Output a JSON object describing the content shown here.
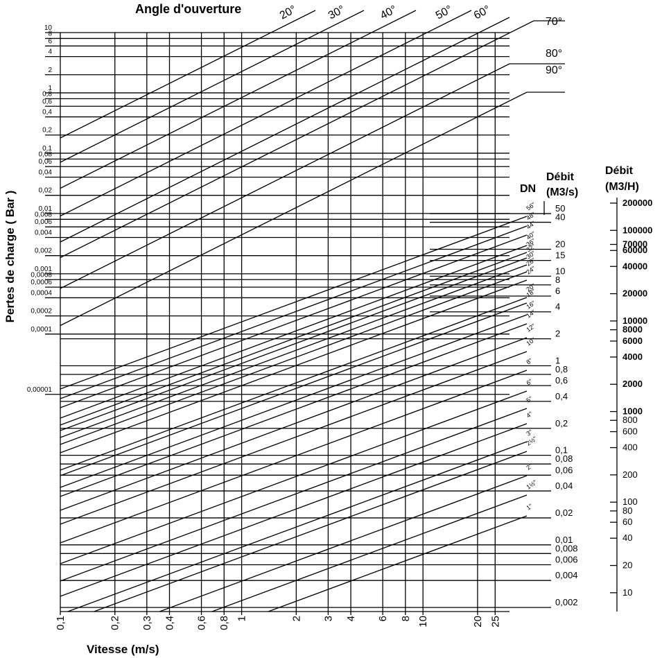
{
  "chart_data": {
    "type": "nomogram",
    "title": "Angle d'ouverture",
    "xlabel": "Vitesse (m/s)",
    "ylabel": "Pertes de charge ( Bar )",
    "log_scale": true,
    "xlim": [
      0.1,
      30
    ],
    "xticks": [
      {
        "value": 0.1,
        "label": "0,1"
      },
      {
        "value": 0.2,
        "label": "0,2"
      },
      {
        "value": 0.3,
        "label": "0,3"
      },
      {
        "value": 0.4,
        "label": "0,4"
      },
      {
        "value": 0.6,
        "label": "0,6"
      },
      {
        "value": 0.8,
        "label": "0,8"
      },
      1,
      2,
      3,
      4,
      6,
      8,
      10,
      20,
      25
    ],
    "ylim": [
      2.5e-09,
      10
    ],
    "yticks": [
      10,
      8,
      6,
      4,
      2,
      1,
      {
        "value": 0.8,
        "label": "0,8"
      },
      {
        "value": 0.6,
        "label": "0,6"
      },
      {
        "value": 0.4,
        "label": "0,4"
      },
      {
        "value": 0.2,
        "label": "0,2"
      },
      {
        "value": 0.1,
        "label": "0,1"
      },
      {
        "value": 0.08,
        "label": "0,08"
      },
      {
        "value": 0.06,
        "label": "0,06"
      },
      {
        "value": 0.04,
        "label": "0,04"
      },
      {
        "value": 0.02,
        "label": "0,02"
      },
      {
        "value": 0.01,
        "label": "0,01"
      },
      {
        "value": 0.008,
        "label": "0,008"
      },
      {
        "value": 0.006,
        "label": "0,006"
      },
      {
        "value": 0.004,
        "label": "0,004"
      },
      {
        "value": 0.002,
        "label": "0,002"
      },
      {
        "value": 0.001,
        "label": "0,001"
      },
      {
        "value": 0.0008,
        "label": "0,0008"
      },
      {
        "value": 0.0006,
        "label": "0,0006"
      },
      {
        "value": 0.0004,
        "label": "0,0004"
      },
      {
        "value": 0.0002,
        "label": "0,0002"
      },
      {
        "value": 0.0001,
        "label": "0,0001"
      },
      {
        "value": 1e-05,
        "label": "0,00001"
      }
    ],
    "angles": [
      "20°",
      "30°",
      "40°",
      "50°",
      "60°",
      "70°",
      "80°",
      "90°"
    ],
    "dn_label": "DN",
    "dn": [
      "56\"",
      "48\"",
      "44\"",
      "40\"",
      "36\"",
      "32\"",
      "30\"",
      "28\"",
      "24\"",
      "20\"",
      "18\"",
      "16\"",
      "14\"",
      "12\"",
      "10\"",
      "8\"",
      "6\"",
      "5\"",
      "4\"",
      "3\"",
      "2½\"",
      "2\"",
      "1½\"",
      "1\""
    ],
    "y2label": [
      "Débit",
      "(M3/s)"
    ],
    "y2lim": [
      0.0018,
      69
    ],
    "y2ticks": [
      50,
      40,
      20,
      15,
      10,
      8,
      6,
      4,
      2,
      1,
      {
        "value": 0.8,
        "label": "0,8"
      },
      {
        "value": 0.6,
        "label": "0,6"
      },
      {
        "value": 0.4,
        "label": "0,4"
      },
      {
        "value": 0.2,
        "label": "0,2"
      },
      {
        "value": 0.1,
        "label": "0,1"
      },
      {
        "value": 0.08,
        "label": "0,08"
      },
      {
        "value": 0.06,
        "label": "0,06"
      },
      {
        "value": 0.04,
        "label": "0,04"
      },
      {
        "value": 0.02,
        "label": "0,02"
      },
      {
        "value": 0.01,
        "label": "0,01"
      },
      {
        "value": 0.008,
        "label": "0,008"
      },
      {
        "value": 0.006,
        "label": "0,006"
      },
      {
        "value": 0.004,
        "label": "0,004"
      },
      {
        "value": 0.002,
        "label": "0,002"
      }
    ],
    "y3label": [
      "Débit",
      "(M3/H)"
    ],
    "y3lim": [
      6.2,
      230000
    ],
    "y3ticks": [
      200000,
      100000,
      70000,
      60000,
      40000,
      20000,
      10000,
      8000,
      6000,
      4000,
      2000,
      1000,
      800,
      600,
      400,
      200,
      100,
      80,
      60,
      40,
      20,
      10
    ]
  }
}
